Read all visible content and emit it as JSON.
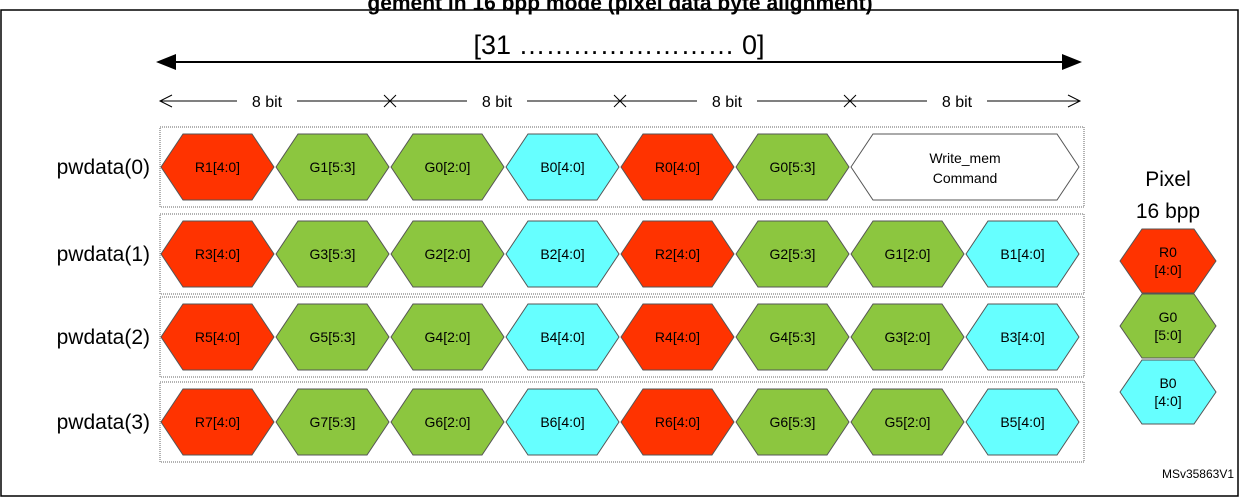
{
  "title_partial": "gement in 16 bpp mode (pixel data byte alignment)",
  "range_label": "[31 …………………… 0]",
  "bit_label": "8 bit",
  "bit_segments": 4,
  "colors": {
    "red": "#ff3300",
    "green": "#8cc63f",
    "blue": "#66ffff",
    "white": "#ffffff",
    "stroke": "#555555"
  },
  "rows": [
    {
      "label": "pwdata(0)",
      "cells": [
        {
          "text": "R1[4:0]",
          "color": "red"
        },
        {
          "text": "G1[5:3]",
          "color": "green"
        },
        {
          "text": "G0[2:0]",
          "color": "green"
        },
        {
          "text": "B0[4:0]",
          "color": "blue"
        },
        {
          "text": "R0[4:0]",
          "color": "red"
        },
        {
          "text": "G0[5:3]",
          "color": "green"
        },
        {
          "text": "Write_mem Command",
          "lines": [
            "Write_mem",
            "Command"
          ],
          "color": "white",
          "span": 2
        }
      ]
    },
    {
      "label": "pwdata(1)",
      "cells": [
        {
          "text": "R3[4:0]",
          "color": "red"
        },
        {
          "text": "G3[5:3]",
          "color": "green"
        },
        {
          "text": "G2[2:0]",
          "color": "green"
        },
        {
          "text": "B2[4:0]",
          "color": "blue"
        },
        {
          "text": "R2[4:0]",
          "color": "red"
        },
        {
          "text": "G2[5:3]",
          "color": "green"
        },
        {
          "text": "G1[2:0]",
          "color": "green"
        },
        {
          "text": "B1[4:0]",
          "color": "blue"
        }
      ]
    },
    {
      "label": "pwdata(2)",
      "cells": [
        {
          "text": "R5[4:0]",
          "color": "red"
        },
        {
          "text": "G5[5:3]",
          "color": "green"
        },
        {
          "text": "G4[2:0]",
          "color": "green"
        },
        {
          "text": "B4[4:0]",
          "color": "blue"
        },
        {
          "text": "R4[4:0]",
          "color": "red"
        },
        {
          "text": "G4[5:3]",
          "color": "green"
        },
        {
          "text": "G3[2:0]",
          "color": "green"
        },
        {
          "text": "B3[4:0]",
          "color": "blue"
        }
      ]
    },
    {
      "label": "pwdata(3)",
      "cells": [
        {
          "text": "R7[4:0]",
          "color": "red"
        },
        {
          "text": "G7[5:3]",
          "color": "green"
        },
        {
          "text": "G6[2:0]",
          "color": "green"
        },
        {
          "text": "B6[4:0]",
          "color": "blue"
        },
        {
          "text": "R6[4:0]",
          "color": "red"
        },
        {
          "text": "G6[5:3]",
          "color": "green"
        },
        {
          "text": "G5[2:0]",
          "color": "green"
        },
        {
          "text": "B5[4:0]",
          "color": "blue"
        }
      ]
    }
  ],
  "legend": {
    "title_line1": "Pixel",
    "title_line2": "16 bpp",
    "items": [
      {
        "lines": [
          "R0",
          "[4:0]"
        ],
        "color": "red"
      },
      {
        "lines": [
          "G0",
          "[5:0]"
        ],
        "color": "green"
      },
      {
        "lines": [
          "B0",
          "[4:0]"
        ],
        "color": "blue"
      }
    ]
  },
  "reference": "MSv35863V1"
}
